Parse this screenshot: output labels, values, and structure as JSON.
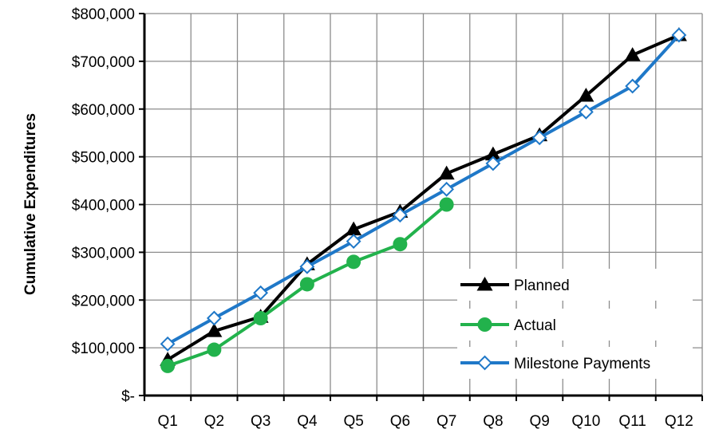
{
  "chart_data": {
    "type": "line",
    "title": "",
    "xlabel": "",
    "ylabel": "Cumulative Expenditures",
    "ylim": [
      0,
      800000
    ],
    "y_ticks": [
      0,
      100000,
      200000,
      300000,
      400000,
      500000,
      600000,
      700000,
      800000
    ],
    "y_tick_labels": [
      "$-",
      "$100,000",
      "$200,000",
      "$300,000",
      "$400,000",
      "$500,000",
      "$600,000",
      "$700,000",
      "$800,000"
    ],
    "categories": [
      "Q1",
      "Q2",
      "Q3",
      "Q4",
      "Q5",
      "Q6",
      "Q7",
      "Q8",
      "Q9",
      "Q10",
      "Q11",
      "Q12"
    ],
    "grid": true,
    "legend_position": "bottom-right",
    "series": [
      {
        "name": "Planned",
        "color": "#000000",
        "marker": "triangle",
        "values": [
          75000,
          135000,
          165000,
          275000,
          348000,
          385000,
          465000,
          505000,
          545000,
          628000,
          713000,
          755000
        ]
      },
      {
        "name": "Actual",
        "color": "#22b24c",
        "marker": "circle",
        "values": [
          62000,
          96000,
          162000,
          233000,
          280000,
          317000,
          400000,
          null,
          null,
          null,
          null,
          null
        ]
      },
      {
        "name": "Milestone Payments",
        "color": "#1f78c8",
        "marker": "diamond-open",
        "values": [
          108000,
          162000,
          215000,
          270000,
          323000,
          378000,
          432000,
          486000,
          540000,
          594000,
          648000,
          755000
        ]
      }
    ]
  }
}
